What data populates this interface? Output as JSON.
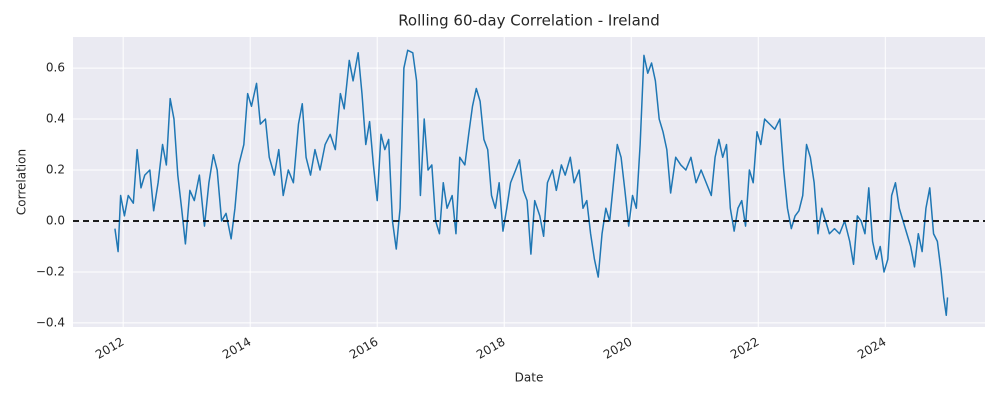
{
  "chart_data": {
    "type": "line",
    "title": "Rolling 60-day Correlation - Ireland",
    "x_label": "Date",
    "y_label": "Correlation",
    "color": "#1f77b4",
    "grid": true,
    "hline": 0,
    "xlim": [
      2011.21,
      2025.57
    ],
    "xticks": [
      2012,
      2014,
      2016,
      2018,
      2020,
      2022,
      2024
    ],
    "ylim": [
      -0.416,
      0.722
    ],
    "yticks": [
      {
        "value": -0.4,
        "label": "−0.4"
      },
      {
        "value": -0.2,
        "label": "−0.2"
      },
      {
        "value": 0,
        "label": "0.0"
      },
      0.2,
      0.4,
      0.6
    ],
    "x": [
      2011.87,
      2011.92,
      2011.96,
      2012.02,
      2012.08,
      2012.16,
      2012.22,
      2012.28,
      2012.34,
      2012.42,
      2012.48,
      2012.55,
      2012.62,
      2012.68,
      2012.74,
      2012.8,
      2012.86,
      2012.92,
      2012.98,
      2013.05,
      2013.12,
      2013.2,
      2013.28,
      2013.35,
      2013.42,
      2013.48,
      2013.55,
      2013.62,
      2013.7,
      2013.76,
      2013.82,
      2013.9,
      2013.96,
      2014.02,
      2014.1,
      2014.16,
      2014.24,
      2014.3,
      2014.38,
      2014.45,
      2014.52,
      2014.6,
      2014.68,
      2014.76,
      2014.82,
      2014.88,
      2014.95,
      2015.02,
      2015.1,
      2015.18,
      2015.26,
      2015.34,
      2015.42,
      2015.48,
      2015.56,
      2015.62,
      2015.7,
      2015.76,
      2015.82,
      2015.88,
      2015.94,
      2016.0,
      2016.06,
      2016.12,
      2016.18,
      2016.24,
      2016.3,
      2016.36,
      2016.42,
      2016.48,
      2016.56,
      2016.62,
      2016.68,
      2016.74,
      2016.8,
      2016.86,
      2016.92,
      2016.98,
      2017.04,
      2017.1,
      2017.18,
      2017.24,
      2017.3,
      2017.38,
      2017.44,
      2017.5,
      2017.56,
      2017.62,
      2017.68,
      2017.74,
      2017.8,
      2017.86,
      2017.92,
      2017.98,
      2018.04,
      2018.1,
      2018.18,
      2018.24,
      2018.3,
      2018.36,
      2018.42,
      2018.48,
      2018.56,
      2018.62,
      2018.68,
      2018.76,
      2018.82,
      2018.9,
      2018.96,
      2019.04,
      2019.1,
      2019.18,
      2019.24,
      2019.3,
      2019.36,
      2019.42,
      2019.48,
      2019.54,
      2019.6,
      2019.66,
      2019.72,
      2019.78,
      2019.84,
      2019.9,
      2019.96,
      2020.02,
      2020.08,
      2020.14,
      2020.2,
      2020.26,
      2020.32,
      2020.38,
      2020.44,
      2020.5,
      2020.56,
      2020.62,
      2020.7,
      2020.78,
      2020.86,
      2020.94,
      2021.02,
      2021.1,
      2021.18,
      2021.26,
      2021.32,
      2021.38,
      2021.44,
      2021.5,
      2021.56,
      2021.62,
      2021.68,
      2021.74,
      2021.8,
      2021.86,
      2021.92,
      2021.98,
      2022.04,
      2022.1,
      2022.18,
      2022.26,
      2022.34,
      2022.4,
      2022.46,
      2022.52,
      2022.58,
      2022.64,
      2022.7,
      2022.76,
      2022.82,
      2022.88,
      2022.94,
      2023.0,
      2023.06,
      2023.12,
      2023.2,
      2023.28,
      2023.36,
      2023.44,
      2023.5,
      2023.56,
      2023.62,
      2023.68,
      2023.74,
      2023.8,
      2023.86,
      2023.92,
      2023.98,
      2024.04,
      2024.1,
      2024.16,
      2024.22,
      2024.28,
      2024.34,
      2024.4,
      2024.46,
      2024.52,
      2024.58,
      2024.64,
      2024.7,
      2024.76,
      2024.82,
      2024.88,
      2024.92,
      2024.96,
      2024.98
    ],
    "values": [
      -0.03,
      -0.12,
      0.1,
      0.02,
      0.1,
      0.07,
      0.28,
      0.13,
      0.18,
      0.2,
      0.04,
      0.15,
      0.3,
      0.22,
      0.48,
      0.4,
      0.18,
      0.05,
      -0.09,
      0.12,
      0.08,
      0.18,
      -0.02,
      0.15,
      0.26,
      0.2,
      0.0,
      0.03,
      -0.07,
      0.05,
      0.22,
      0.3,
      0.5,
      0.45,
      0.54,
      0.38,
      0.4,
      0.25,
      0.18,
      0.28,
      0.1,
      0.2,
      0.15,
      0.38,
      0.46,
      0.25,
      0.18,
      0.28,
      0.2,
      0.3,
      0.34,
      0.28,
      0.5,
      0.44,
      0.63,
      0.55,
      0.66,
      0.5,
      0.3,
      0.39,
      0.22,
      0.08,
      0.34,
      0.28,
      0.32,
      0.0,
      -0.11,
      0.05,
      0.6,
      0.67,
      0.66,
      0.55,
      0.1,
      0.4,
      0.2,
      0.22,
      0.0,
      -0.05,
      0.15,
      0.05,
      0.1,
      -0.05,
      0.25,
      0.22,
      0.34,
      0.45,
      0.52,
      0.47,
      0.32,
      0.28,
      0.1,
      0.05,
      0.15,
      -0.04,
      0.05,
      0.15,
      0.2,
      0.24,
      0.12,
      0.08,
      -0.13,
      0.08,
      0.02,
      -0.06,
      0.15,
      0.2,
      0.12,
      0.22,
      0.18,
      0.25,
      0.15,
      0.2,
      0.05,
      0.08,
      -0.05,
      -0.15,
      -0.22,
      -0.05,
      0.05,
      0.0,
      0.15,
      0.3,
      0.25,
      0.12,
      -0.02,
      0.1,
      0.05,
      0.3,
      0.65,
      0.58,
      0.62,
      0.55,
      0.4,
      0.35,
      0.28,
      0.11,
      0.25,
      0.22,
      0.2,
      0.25,
      0.15,
      0.2,
      0.15,
      0.1,
      0.25,
      0.32,
      0.25,
      0.3,
      0.05,
      -0.04,
      0.05,
      0.08,
      -0.02,
      0.2,
      0.15,
      0.35,
      0.3,
      0.4,
      0.38,
      0.36,
      0.4,
      0.2,
      0.05,
      -0.03,
      0.02,
      0.04,
      0.1,
      0.3,
      0.25,
      0.15,
      -0.05,
      0.05,
      0.0,
      -0.05,
      -0.03,
      -0.05,
      0.0,
      -0.08,
      -0.17,
      0.02,
      0.0,
      -0.05,
      0.13,
      -0.08,
      -0.15,
      -0.1,
      -0.2,
      -0.15,
      0.1,
      0.15,
      0.05,
      0.0,
      -0.05,
      -0.1,
      -0.18,
      -0.05,
      -0.12,
      0.05,
      0.13,
      -0.05,
      -0.08,
      -0.2,
      -0.3,
      -0.37,
      -0.3
    ]
  }
}
